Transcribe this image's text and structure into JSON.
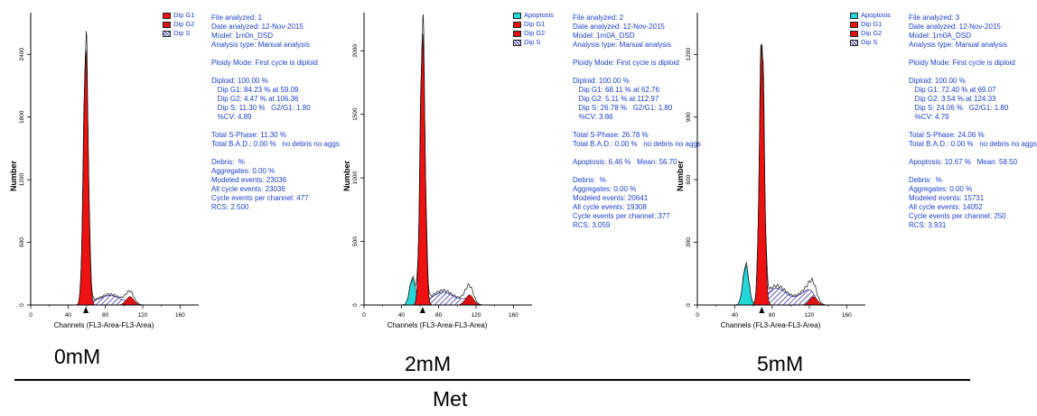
{
  "chart_data": [
    {
      "type": "area",
      "condition": "0mM",
      "xlabel": "Channels (FL3-Area-FL3-Area)",
      "ylabel": "Number",
      "xlim": [
        0,
        180
      ],
      "ylim": [
        0,
        2800
      ],
      "x_ticks": [
        "0",
        "40",
        "80",
        "120",
        "160"
      ],
      "y_ticks": [
        "0",
        "600",
        "1200",
        "1800",
        "2400"
      ],
      "y_tick_values": [
        0,
        600,
        1200,
        1800,
        2400
      ],
      "legend": [
        "Dip G1",
        "Dip G2",
        "Dip S"
      ],
      "peaks": {
        "apoptosis": null,
        "g1": 59.09,
        "g2": 106.36,
        "g1_height": 2450,
        "g2_height": 80,
        "s_height": 90
      },
      "stats": [
        "File analyzed: 1",
        "Date analyzed: 12-Nov-2015",
        "Model: 1rn0n_DSD",
        "Analysis type: Manual analysis",
        "",
        "Ploidy Mode: First cycle is diploid",
        "",
        "Diploid: 100.00 %",
        "   Dip G1: 84.23 % at 59.09",
        "   Dip G2: 4.47 % at 106.36",
        "   Dip S: 11.30 %   G2/G1: 1.80",
        "   %CV: 4.89",
        "",
        "Total S-Phase: 11.30 %",
        "Total B.A.D.: 0.00 %   no debris no aggs",
        "",
        "Debris:  %",
        "Aggregates: 0.00 %",
        "Modeled events: 23036",
        "All cycle events: 23036",
        "Cycle events per channel: 477",
        "RCS: 2.500"
      ]
    },
    {
      "type": "area",
      "condition": "2mM",
      "xlabel": "Channels (FL3-Area-FL3-Area)",
      "ylabel": "Number",
      "xlim": [
        0,
        180
      ],
      "ylim": [
        0,
        2300
      ],
      "x_ticks": [
        "0",
        "40",
        "80",
        "120",
        "160"
      ],
      "y_ticks": [
        "0",
        "500",
        "1000",
        "1500",
        "2000"
      ],
      "y_tick_values": [
        0,
        500,
        1000,
        1500,
        2000
      ],
      "legend": [
        "Apoptosis",
        "Dip G1",
        "Dip G2",
        "Dip S"
      ],
      "peaks": {
        "apoptosis": 52,
        "g1": 62.76,
        "g2": 112.97,
        "g1_height": 2140,
        "g2_height": 80,
        "s_height": 100
      },
      "stats": [
        "File analyzed: 2",
        "Date analyzed: 12-Nov-2015",
        "Model: 1m0A_DSD",
        "Analysis type: Manual analysis",
        "",
        "Ploidy Mode: First cycle is diploid",
        "",
        "Diploid: 100.00 %",
        "   Dip G1: 68.11 % at 62.76",
        "   Dip G2: 5.11 % at 112.97",
        "   Dip S: 26.78 %   G2/G1: 1.80",
        "   %CV: 3.86",
        "",
        "Total S-Phase: 26.78 %",
        "Total B.A.D.: 0.00 %   no debris no aggs",
        "",
        "Apoptosis: 6.46 %   Mean: 56.70",
        "",
        "Debris:  %",
        "Aggregates: 0.00 %",
        "Modeled events: 20641",
        "All cycle events: 19308",
        "Cycle events per channel: 377",
        "RCS: 3.059"
      ]
    },
    {
      "type": "area",
      "condition": "5mM",
      "xlabel": "Channels (FL3-Area-FL3-Area)",
      "ylabel": "Number",
      "xlim": [
        0,
        180
      ],
      "ylim": [
        0,
        1400
      ],
      "x_ticks": [
        "0",
        "40",
        "80",
        "120",
        "160"
      ],
      "y_ticks": [
        "0",
        "300",
        "600",
        "900",
        "1200"
      ],
      "y_tick_values": [
        0,
        300,
        600,
        900,
        1200
      ],
      "legend": [
        "Apoptosis",
        "Dip G1",
        "Dip G2",
        "Dip S"
      ],
      "peaks": {
        "apoptosis": 52,
        "g1": 69.07,
        "g2": 124.33,
        "g1_height": 1250,
        "g2_height": 40,
        "s_height": 80
      },
      "stats": [
        "File analyzed: 3",
        "Date analyzed: 12-Nov-2015",
        "Model: 1rn0A_DSD",
        "Analysis type: Manual analysis",
        "",
        "Ploidy Mode: First cycle is diploid",
        "",
        "Diploid: 100.00 %",
        "   Dip G1: 72.40 % at 69.07",
        "   Dip G2: 3.54 % at 124.33",
        "   Dip S: 24.06 %   G2/G1: 1.80",
        "   %CV: 4.79",
        "",
        "Total S-Phase: 24.06 %",
        "Total B.A.D.: 0.00 %   no debris no aggs",
        "",
        "Apoptosis: 10.67 %   Mean: 58.50",
        "",
        "Debris:  %",
        "Aggregates: 0.00 %",
        "Modeled events: 15731",
        "All cycle events: 14052",
        "Cycle events per channel: 250",
        "RCS: 3.931"
      ]
    }
  ],
  "group_label": "Met",
  "colors": {
    "g1": "#ee1111",
    "g2": "#dd1111",
    "s": "#3a3aa8",
    "apoptosis": "#22d8d8",
    "stats_text": "#1f3fcf"
  }
}
